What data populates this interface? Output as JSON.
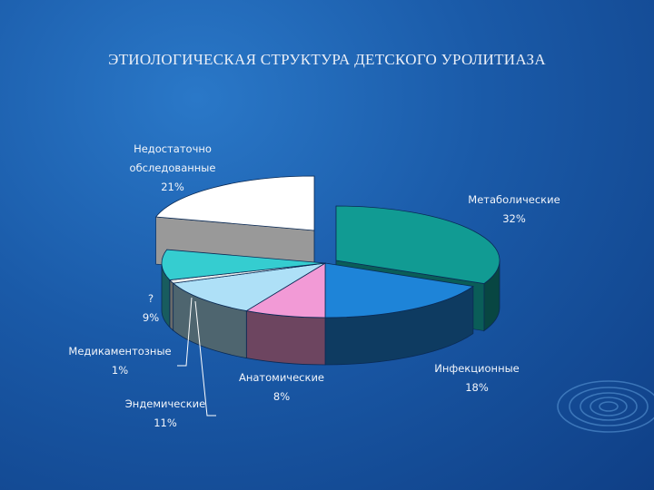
{
  "title": "ЭТИОЛОГИЧЕСКАЯ СТРУКТУРА ДЕТСКОГО УРОЛИТИАЗА",
  "chart_data": {
    "type": "pie",
    "title": "ЭТИОЛОГИЧЕСКАЯ СТРУКТУРА ДЕТСКОГО УРОЛИТИАЗА",
    "three_d": true,
    "exploded": [
      "Недостаточно обследованные",
      "Метаболические"
    ],
    "slices": [
      {
        "name": "Метаболические",
        "value": 32,
        "label_lines": [
          "Метаболические",
          "32%"
        ],
        "color": "#119b93"
      },
      {
        "name": "Инфекционные",
        "value": 18,
        "label_lines": [
          "Инфекционные",
          "18%"
        ],
        "color": "#1e84d8"
      },
      {
        "name": "Анатомические",
        "value": 8,
        "label_lines": [
          "Анатомические",
          "8%"
        ],
        "color": "#f29ad6"
      },
      {
        "name": "Эндемические",
        "value": 11,
        "label_lines": [
          "Эндемические",
          "11%"
        ],
        "color": "#aee0f7"
      },
      {
        "name": "Медикаментозные",
        "value": 1,
        "label_lines": [
          "Медикаментозные",
          "1%"
        ],
        "color": "#e8ecec"
      },
      {
        "name": "?",
        "value": 9,
        "label_lines": [
          "?",
          "9%"
        ],
        "color": "#35cdd0"
      },
      {
        "name": "Недостаточно обследованные",
        "value": 21,
        "label_lines": [
          "Недостаточно",
          "обследованные",
          "21%"
        ],
        "color": "#ffffff"
      }
    ]
  }
}
